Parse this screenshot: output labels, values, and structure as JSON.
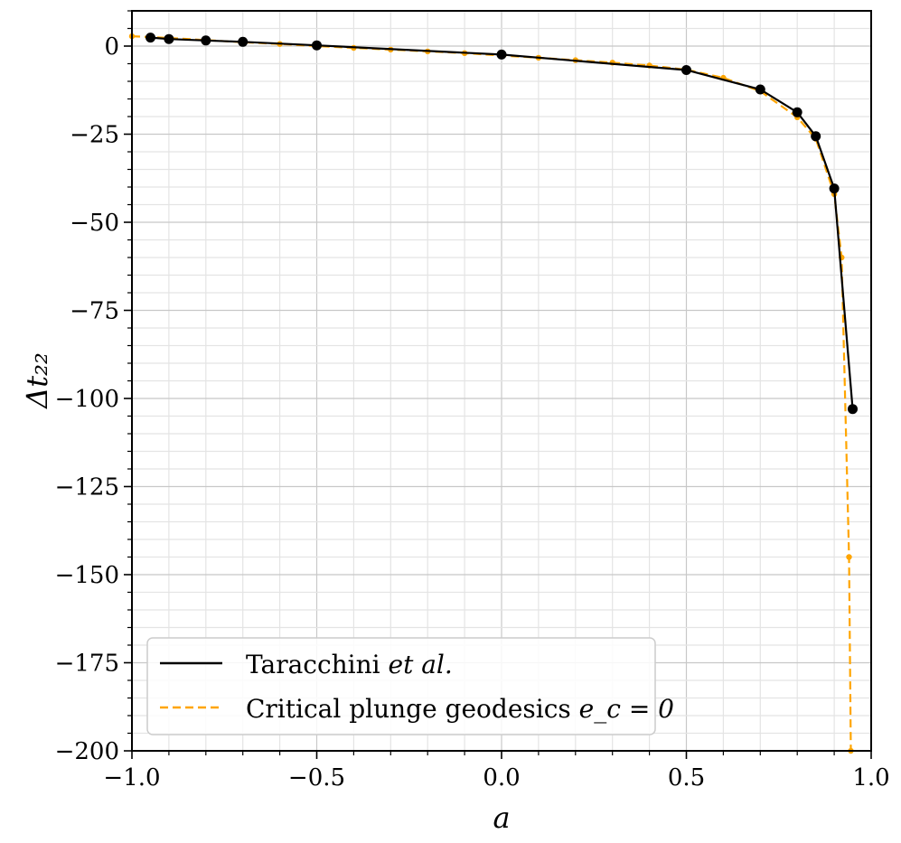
{
  "chart_data": {
    "type": "line",
    "xlabel": "a",
    "ylabel": "Δt₂₂",
    "xlim": [
      -1.0,
      1.0
    ],
    "ylim": [
      -200,
      10
    ],
    "x_ticks": [
      -1.0,
      -0.5,
      0.0,
      0.5,
      1.0
    ],
    "x_tick_labels": [
      "−1.0",
      "−0.5",
      "0.0",
      "0.5",
      "1.0"
    ],
    "y_ticks": [
      0,
      -25,
      -50,
      -75,
      -100,
      -125,
      -150,
      -175,
      -200
    ],
    "y_tick_labels": [
      "0",
      "−25",
      "−50",
      "−75",
      "−100",
      "−125",
      "−150",
      "−175",
      "−200"
    ],
    "grid": true,
    "legend_position": "lower-left",
    "series": [
      {
        "name": "Taracchini et al.",
        "style": "solid",
        "color": "#000000",
        "x": [
          -0.95,
          -0.9,
          -0.8,
          -0.7,
          -0.5,
          0.0,
          0.5,
          0.7,
          0.8,
          0.85,
          0.9,
          0.95
        ],
        "y": [
          2.4,
          2.0,
          1.6,
          1.2,
          0.2,
          -2.4,
          -6.8,
          -12.3,
          -18.8,
          -25.6,
          -40.4,
          -103.0
        ]
      },
      {
        "name": "Critical plunge geodesics e_c = 0",
        "style": "dashed",
        "color": "#ffa500",
        "x": [
          -1.0,
          -0.9,
          -0.8,
          -0.7,
          -0.6,
          -0.5,
          -0.4,
          -0.3,
          -0.2,
          -0.1,
          0.0,
          0.1,
          0.2,
          0.3,
          0.4,
          0.5,
          0.6,
          0.7,
          0.8,
          0.85,
          0.9,
          0.92,
          0.94,
          0.945
        ],
        "y": [
          2.8,
          2.3,
          1.7,
          1.1,
          0.6,
          0.0,
          -0.5,
          -1.0,
          -1.5,
          -2.0,
          -2.7,
          -3.3,
          -4.0,
          -4.7,
          -5.5,
          -6.7,
          -9.0,
          -12.8,
          -20.2,
          -26.3,
          -42.0,
          -60.0,
          -145.0,
          -200.0
        ]
      }
    ],
    "legend": {
      "entries": [
        {
          "prefix": "Taracchini ",
          "italic": "et al.",
          "suffix": ""
        },
        {
          "prefix": "Critical plunge geodesics ",
          "italic": "e_c = 0",
          "suffix": ""
        }
      ]
    }
  }
}
